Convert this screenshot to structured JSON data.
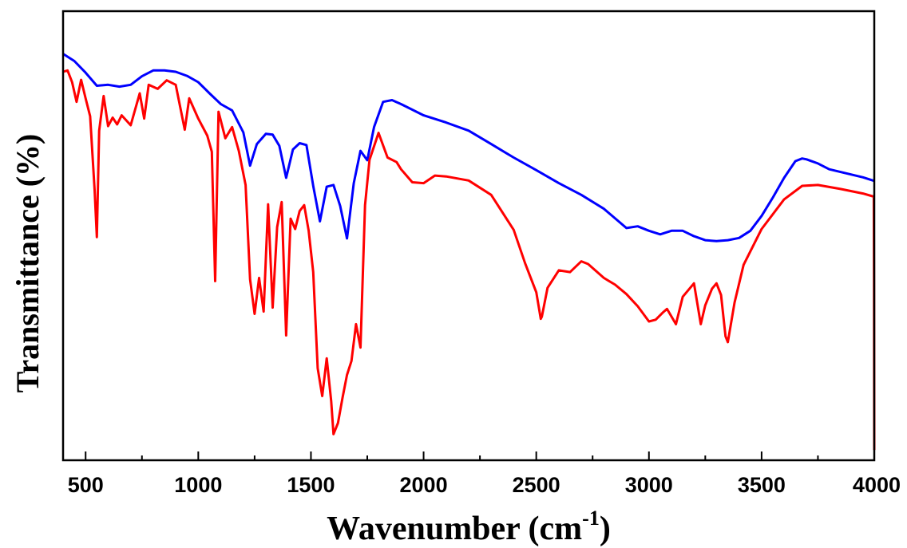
{
  "chart_data": {
    "type": "line",
    "title": "",
    "xlabel": "Wavenumber (cm",
    "xlabel_superscript": "-1",
    "xlabel_suffix": ")",
    "ylabel": "Transmittance (%)",
    "xlim": [
      400,
      4000
    ],
    "ylim": [
      0,
      100
    ],
    "x_ticks": [
      500,
      1000,
      1500,
      2000,
      2500,
      3000,
      3500,
      4000
    ],
    "y_ticks_shown": false,
    "grid": false,
    "legend": "none",
    "series": [
      {
        "color": "#0000ff",
        "x": [
          400,
          450,
          500,
          550,
          600,
          650,
          700,
          750,
          800,
          850,
          900,
          950,
          1000,
          1050,
          1100,
          1150,
          1200,
          1230,
          1260,
          1300,
          1330,
          1360,
          1390,
          1420,
          1450,
          1480,
          1510,
          1540,
          1570,
          1600,
          1630,
          1660,
          1690,
          1720,
          1750,
          1780,
          1820,
          1860,
          1900,
          2000,
          2100,
          2200,
          2300,
          2400,
          2500,
          2600,
          2700,
          2800,
          2900,
          2950,
          3000,
          3050,
          3100,
          3150,
          3200,
          3250,
          3300,
          3350,
          3400,
          3450,
          3500,
          3550,
          3600,
          3650,
          3680,
          3700,
          3750,
          3800,
          3850,
          3900,
          3950,
          4000
        ],
        "y": [
          90.5,
          88.9,
          86.3,
          83.4,
          83.6,
          83.2,
          83.6,
          85.5,
          86.8,
          86.8,
          86.5,
          85.6,
          84.2,
          81.7,
          79.3,
          77.9,
          73.0,
          65.6,
          70.4,
          72.7,
          72.5,
          70.0,
          62.9,
          69.2,
          70.6,
          70.2,
          61.1,
          53.2,
          60.9,
          61.3,
          56.6,
          49.4,
          61.7,
          68.9,
          66.8,
          74.2,
          79.8,
          80.2,
          79.3,
          76.8,
          75.2,
          73.4,
          70.4,
          67.4,
          64.6,
          61.7,
          59.1,
          56.0,
          51.7,
          52.1,
          51.1,
          50.3,
          51.1,
          51.1,
          49.9,
          49.0,
          48.8,
          49.0,
          49.5,
          51.1,
          54.4,
          58.5,
          62.9,
          66.6,
          67.2,
          67.0,
          66.1,
          64.8,
          64.2,
          63.6,
          63.0,
          62.2
        ]
      },
      {
        "color": "#ff0000",
        "x": [
          400,
          420,
          440,
          460,
          480,
          500,
          520,
          540,
          550,
          560,
          580,
          600,
          620,
          640,
          660,
          700,
          740,
          760,
          780,
          820,
          860,
          900,
          940,
          960,
          1000,
          1040,
          1060,
          1075,
          1090,
          1120,
          1150,
          1180,
          1210,
          1230,
          1250,
          1270,
          1290,
          1310,
          1330,
          1350,
          1370,
          1390,
          1410,
          1430,
          1450,
          1470,
          1490,
          1510,
          1530,
          1550,
          1570,
          1590,
          1600,
          1620,
          1640,
          1660,
          1680,
          1700,
          1720,
          1740,
          1760,
          1800,
          1840,
          1880,
          1900,
          1950,
          2000,
          2050,
          2100,
          2200,
          2300,
          2400,
          2450,
          2500,
          2520,
          2525,
          2550,
          2600,
          2650,
          2700,
          2730,
          2800,
          2850,
          2900,
          2950,
          3000,
          3030,
          3060,
          3080,
          3120,
          3150,
          3200,
          3230,
          3250,
          3280,
          3300,
          3320,
          3340,
          3350,
          3380,
          3420,
          3500,
          3600,
          3680,
          3750,
          3850,
          3950,
          3998,
          3999,
          4000
        ],
        "y": [
          86.5,
          86.8,
          84.2,
          79.8,
          84.7,
          80.6,
          76.6,
          60.2,
          49.7,
          73.4,
          81.1,
          74.4,
          76.3,
          74.8,
          76.8,
          74.6,
          81.7,
          76.1,
          83.6,
          82.7,
          84.6,
          83.6,
          73.6,
          80.6,
          76.1,
          72.3,
          68.7,
          39.9,
          77.6,
          71.7,
          74.2,
          68.9,
          61.3,
          40.3,
          32.6,
          40.6,
          33.1,
          57.0,
          34.0,
          51.9,
          57.5,
          27.8,
          53.8,
          51.5,
          55.5,
          56.8,
          51.1,
          41.9,
          20.5,
          14.3,
          22.7,
          13.2,
          5.8,
          8.3,
          13.9,
          19.0,
          22.1,
          30.3,
          25.1,
          56.8,
          66.9,
          72.9,
          67.4,
          66.4,
          64.8,
          61.9,
          61.7,
          63.4,
          63.2,
          62.3,
          59.1,
          51.3,
          43.9,
          37.4,
          31.5,
          32.0,
          38.4,
          42.3,
          41.9,
          44.3,
          43.7,
          40.6,
          39.1,
          37.0,
          34.3,
          30.9,
          31.3,
          32.8,
          33.7,
          30.3,
          36.4,
          39.4,
          30.3,
          34.5,
          38.2,
          39.4,
          36.8,
          27.6,
          26.3,
          35.1,
          43.5,
          51.5,
          58.1,
          61.1,
          61.3,
          60.4,
          59.4,
          58.7,
          40.0,
          2.3
        ]
      }
    ]
  }
}
